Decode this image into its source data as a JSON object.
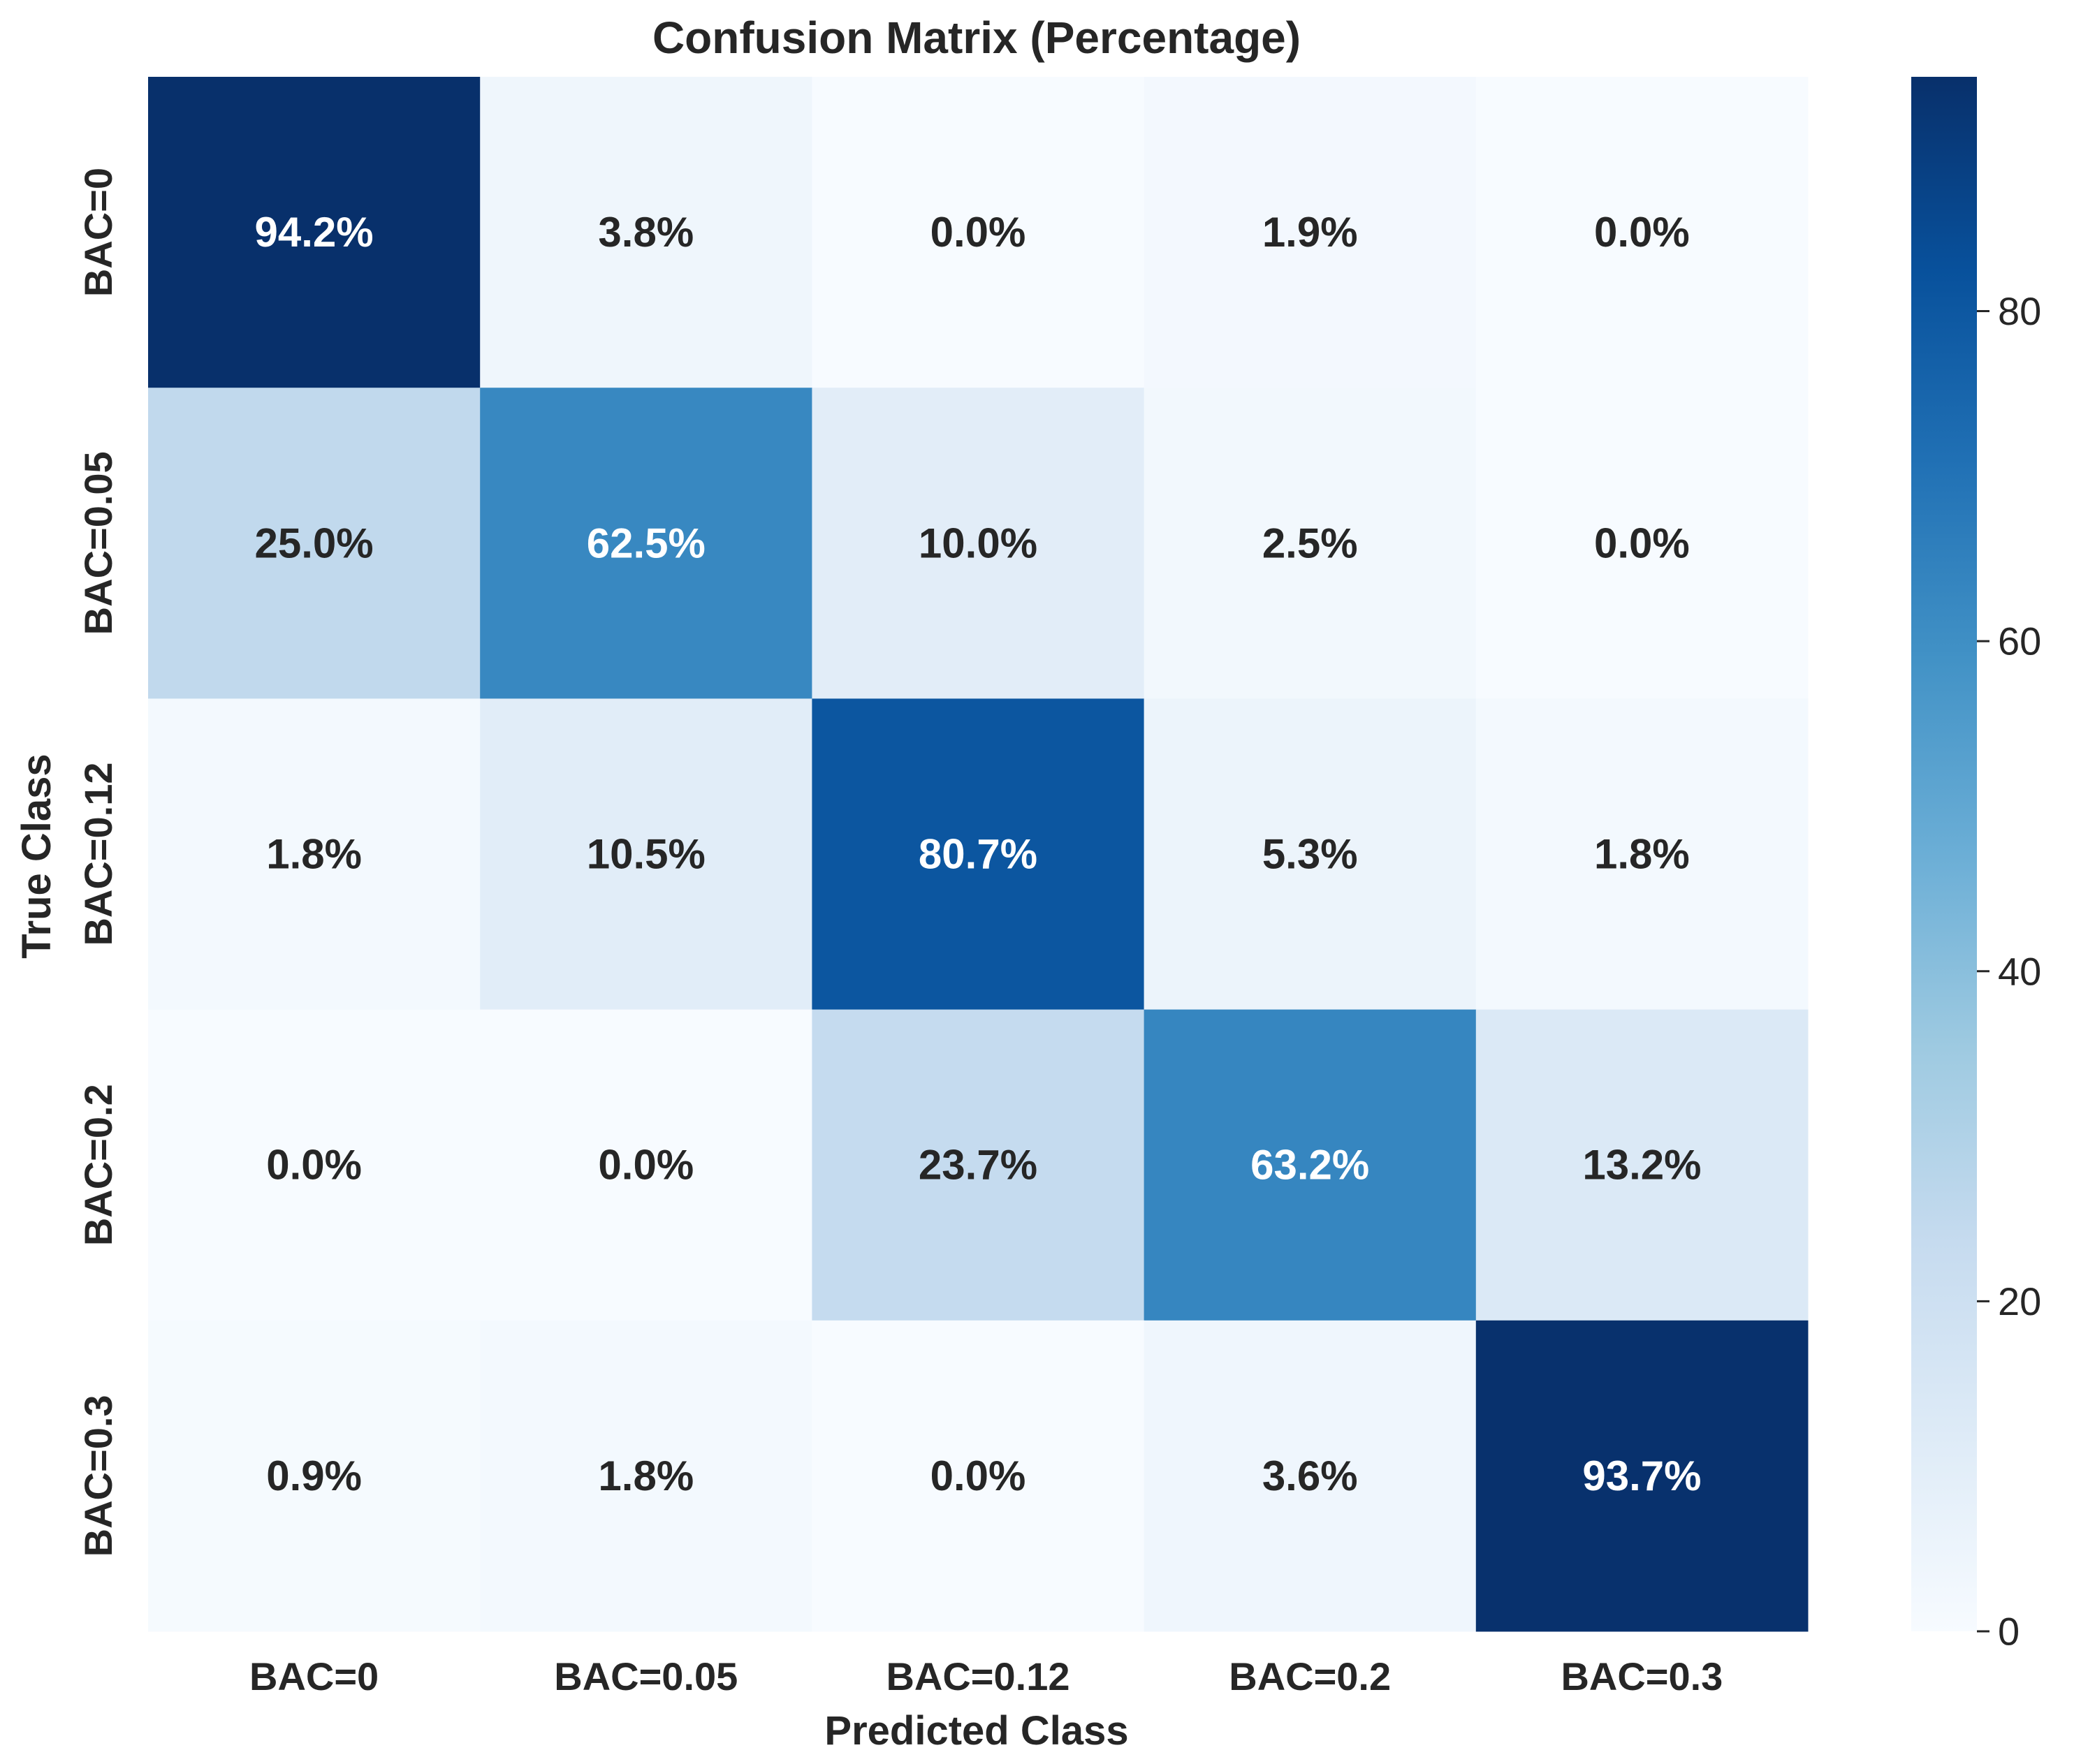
{
  "chart_data": {
    "type": "heatmap",
    "title": "Confusion Matrix (Percentage)",
    "xlabel": "Predicted Class",
    "ylabel": "True Class",
    "x_categories": [
      "BAC=0",
      "BAC=0.05",
      "BAC=0.12",
      "BAC=0.2",
      "BAC=0.3"
    ],
    "y_categories": [
      "BAC=0",
      "BAC=0.05",
      "BAC=0.12",
      "BAC=0.2",
      "BAC=0.3"
    ],
    "values": [
      [
        94.2,
        3.8,
        0.0,
        1.9,
        0.0
      ],
      [
        25.0,
        62.5,
        10.0,
        2.5,
        0.0
      ],
      [
        1.8,
        10.5,
        80.7,
        5.3,
        1.8
      ],
      [
        0.0,
        0.0,
        23.7,
        63.2,
        13.2
      ],
      [
        0.9,
        1.8,
        0.0,
        3.6,
        93.7
      ]
    ],
    "value_labels": [
      [
        "94.2%",
        "3.8%",
        "0.0%",
        "1.9%",
        "0.0%"
      ],
      [
        "25.0%",
        "62.5%",
        "10.0%",
        "2.5%",
        "0.0%"
      ],
      [
        "1.8%",
        "10.5%",
        "80.7%",
        "5.3%",
        "1.8%"
      ],
      [
        "0.0%",
        "0.0%",
        "23.7%",
        "63.2%",
        "13.2%"
      ],
      [
        "0.9%",
        "1.8%",
        "0.0%",
        "3.6%",
        "93.7%"
      ]
    ],
    "colormap": "Blues",
    "colorbar": {
      "range": [
        0,
        94.2
      ],
      "ticks": [
        0,
        20,
        40,
        60,
        80
      ],
      "tick_labels": [
        "0",
        "20",
        "40",
        "60",
        "80"
      ]
    }
  }
}
